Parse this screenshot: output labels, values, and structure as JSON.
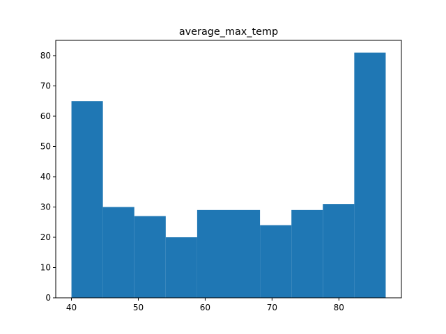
{
  "chart_data": {
    "type": "histogram",
    "title": "average_max_temp",
    "xlabel": "",
    "ylabel": "",
    "bins": [
      {
        "start": 40.0,
        "end": 44.7,
        "count": 65
      },
      {
        "start": 44.7,
        "end": 49.4,
        "count": 30
      },
      {
        "start": 49.4,
        "end": 54.1,
        "count": 27
      },
      {
        "start": 54.1,
        "end": 58.8,
        "count": 20
      },
      {
        "start": 58.8,
        "end": 63.5,
        "count": 29
      },
      {
        "start": 63.5,
        "end": 68.2,
        "count": 29
      },
      {
        "start": 68.2,
        "end": 72.9,
        "count": 24
      },
      {
        "start": 72.9,
        "end": 77.6,
        "count": 29
      },
      {
        "start": 77.6,
        "end": 82.3,
        "count": 31
      },
      {
        "start": 82.3,
        "end": 87.0,
        "count": 81
      }
    ],
    "xlim": [
      37.65,
      89.35
    ],
    "ylim": [
      0,
      85.05
    ],
    "xticks": [
      "40",
      "50",
      "60",
      "70",
      "80"
    ],
    "yticks": [
      "0",
      "10",
      "20",
      "30",
      "40",
      "50",
      "60",
      "70",
      "80"
    ],
    "bar_color": "#1f77b4",
    "grid": false,
    "legend": "none"
  }
}
